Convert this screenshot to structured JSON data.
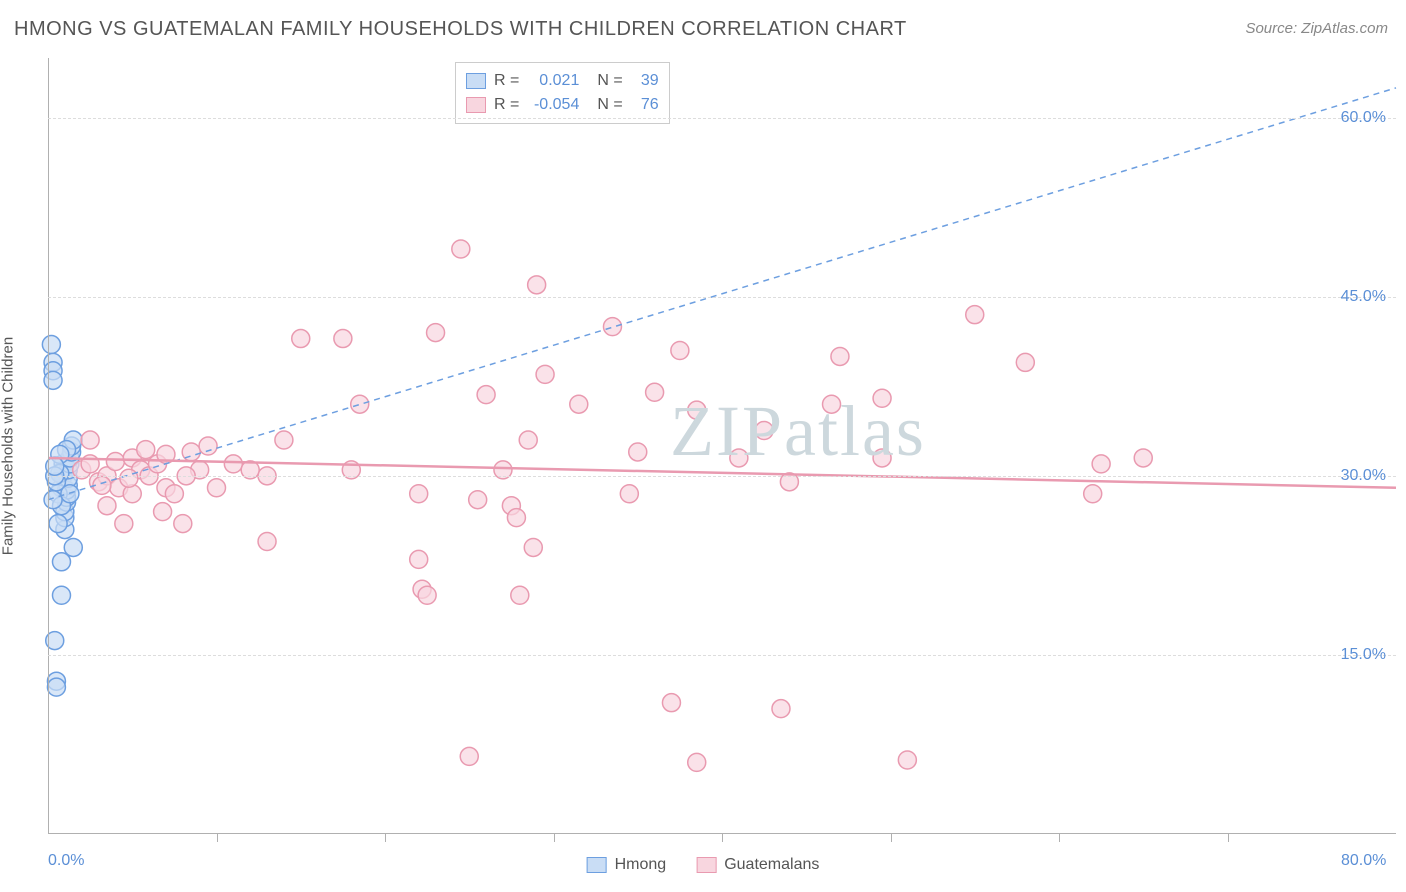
{
  "title": "HMONG VS GUATEMALAN FAMILY HOUSEHOLDS WITH CHILDREN CORRELATION CHART",
  "source": "Source: ZipAtlas.com",
  "ylabel": "Family Households with Children",
  "watermark": "ZIPatlas",
  "chart": {
    "type": "scatter",
    "xlim": [
      0,
      80
    ],
    "ylim": [
      0,
      65
    ],
    "x_ticks": [
      10,
      20,
      30,
      40,
      50,
      60,
      70
    ],
    "x_labels": [
      {
        "val": 0.0,
        "text": "0.0%"
      },
      {
        "val": 80.0,
        "text": "80.0%"
      }
    ],
    "y_labels": [
      {
        "val": 15.0,
        "text": "15.0%"
      },
      {
        "val": 30.0,
        "text": "30.0%"
      },
      {
        "val": 45.0,
        "text": "45.0%"
      },
      {
        "val": 60.0,
        "text": "60.0%"
      }
    ],
    "background_color": "#ffffff",
    "grid_color": "#dddddd",
    "marker_radius": 9,
    "marker_stroke_width": 1.5,
    "marker_fill_opacity": 0.35,
    "series": [
      {
        "name": "Hmong",
        "color": "#6d9fe0",
        "fill": "#c9ddf5",
        "r_label": "R =",
        "r_value": "0.021",
        "n_label": "N =",
        "n_value": "39",
        "trend": {
          "dash": "6,5",
          "width": 1.5,
          "x1": 0,
          "y1": 28.0,
          "x2": 80,
          "y2": 62.5
        },
        "points": [
          [
            0.2,
            41.0
          ],
          [
            0.3,
            39.5
          ],
          [
            0.3,
            38.8
          ],
          [
            0.3,
            38.0
          ],
          [
            0.4,
            16.2
          ],
          [
            0.5,
            12.8
          ],
          [
            0.5,
            12.3
          ],
          [
            0.8,
            20.0
          ],
          [
            0.8,
            22.8
          ],
          [
            0.8,
            29.0
          ],
          [
            0.9,
            30.0
          ],
          [
            0.9,
            30.5
          ],
          [
            0.9,
            31.0
          ],
          [
            1.0,
            25.5
          ],
          [
            1.0,
            26.5
          ],
          [
            1.0,
            27.0
          ],
          [
            1.1,
            27.8
          ],
          [
            1.1,
            28.2
          ],
          [
            1.1,
            28.8
          ],
          [
            1.2,
            29.2
          ],
          [
            1.2,
            29.8
          ],
          [
            1.2,
            30.5
          ],
          [
            1.3,
            31.0
          ],
          [
            1.3,
            31.5
          ],
          [
            1.4,
            32.0
          ],
          [
            1.4,
            32.5
          ],
          [
            1.5,
            33.0
          ],
          [
            1.5,
            24.0
          ],
          [
            1.1,
            32.2
          ],
          [
            0.6,
            28.5
          ],
          [
            0.7,
            30.2
          ],
          [
            0.7,
            31.8
          ],
          [
            0.8,
            27.5
          ],
          [
            0.5,
            29.5
          ],
          [
            0.4,
            30.0
          ],
          [
            0.4,
            30.8
          ],
          [
            0.6,
            26.0
          ],
          [
            0.3,
            28.0
          ],
          [
            1.3,
            28.5
          ]
        ]
      },
      {
        "name": "Guatemalans",
        "color": "#e99ab0",
        "fill": "#f8d6df",
        "r_label": "R =",
        "r_value": "-0.054",
        "n_label": "N =",
        "n_value": "76",
        "trend": {
          "dash": "none",
          "width": 2.5,
          "x1": 0,
          "y1": 31.5,
          "x2": 80,
          "y2": 29.0
        },
        "points": [
          [
            2.0,
            30.5
          ],
          [
            2.5,
            31.0
          ],
          [
            3.0,
            29.5
          ],
          [
            3.5,
            30.0
          ],
          [
            4.0,
            31.2
          ],
          [
            4.2,
            29.0
          ],
          [
            4.5,
            26.0
          ],
          [
            5.0,
            31.5
          ],
          [
            5.0,
            28.5
          ],
          [
            5.5,
            30.5
          ],
          [
            6.0,
            30.0
          ],
          [
            6.5,
            31.0
          ],
          [
            7.0,
            29.0
          ],
          [
            7.0,
            31.8
          ],
          [
            7.5,
            28.5
          ],
          [
            8.0,
            26.0
          ],
          [
            8.5,
            32.0
          ],
          [
            9.0,
            30.5
          ],
          [
            9.5,
            32.5
          ],
          [
            10.0,
            29.0
          ],
          [
            11.0,
            31.0
          ],
          [
            12.0,
            30.5
          ],
          [
            13.0,
            30.0
          ],
          [
            13.0,
            24.5
          ],
          [
            14.0,
            33.0
          ],
          [
            15.0,
            41.5
          ],
          [
            17.5,
            41.5
          ],
          [
            18.0,
            30.5
          ],
          [
            18.5,
            36.0
          ],
          [
            22.0,
            28.5
          ],
          [
            22.0,
            23.0
          ],
          [
            22.2,
            20.5
          ],
          [
            22.5,
            20.0
          ],
          [
            23.0,
            42.0
          ],
          [
            24.5,
            49.0
          ],
          [
            25.0,
            6.5
          ],
          [
            25.5,
            28.0
          ],
          [
            26.0,
            36.8
          ],
          [
            27.0,
            30.5
          ],
          [
            27.5,
            27.5
          ],
          [
            27.8,
            26.5
          ],
          [
            28.0,
            20.0
          ],
          [
            28.5,
            33.0
          ],
          [
            28.8,
            24.0
          ],
          [
            29.0,
            46.0
          ],
          [
            29.5,
            38.5
          ],
          [
            31.5,
            36.0
          ],
          [
            33.5,
            42.5
          ],
          [
            34.5,
            28.5
          ],
          [
            35.0,
            32.0
          ],
          [
            36.0,
            37.0
          ],
          [
            37.0,
            11.0
          ],
          [
            37.5,
            40.5
          ],
          [
            38.5,
            6.0
          ],
          [
            38.5,
            35.5
          ],
          [
            41.0,
            31.5
          ],
          [
            42.5,
            33.8
          ],
          [
            43.5,
            10.5
          ],
          [
            44.0,
            29.5
          ],
          [
            46.5,
            36.0
          ],
          [
            47.0,
            40.0
          ],
          [
            49.5,
            31.5
          ],
          [
            49.5,
            36.5
          ],
          [
            51.0,
            6.2
          ],
          [
            55.0,
            43.5
          ],
          [
            58.0,
            39.5
          ],
          [
            62.0,
            28.5
          ],
          [
            62.5,
            31.0
          ],
          [
            65.0,
            31.5
          ],
          [
            2.5,
            33.0
          ],
          [
            3.5,
            27.5
          ],
          [
            5.8,
            32.2
          ],
          [
            3.2,
            29.2
          ],
          [
            4.8,
            29.8
          ],
          [
            6.8,
            27.0
          ],
          [
            8.2,
            30.0
          ]
        ]
      }
    ]
  },
  "legend": {
    "series1": "Hmong",
    "series2": "Guatemalans"
  }
}
